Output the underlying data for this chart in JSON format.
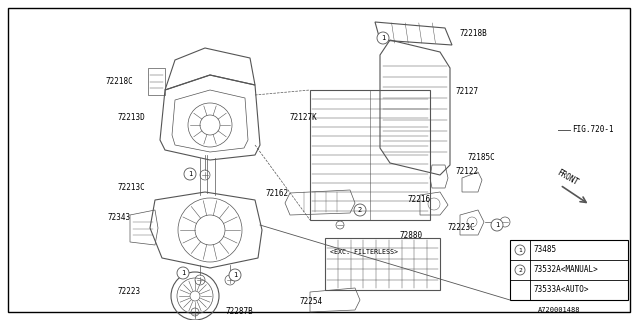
{
  "bg_color": "#ffffff",
  "border_color": "#000000",
  "line_color": "#555555",
  "fig_ref": "FIG.720-1",
  "part_number_bottom": "A720001488",
  "legend": {
    "row1_label": "73485",
    "row2_label": "73532A<MANUAL>",
    "row3_label": "73533A<AUTO>"
  },
  "front_text": "FRONT"
}
